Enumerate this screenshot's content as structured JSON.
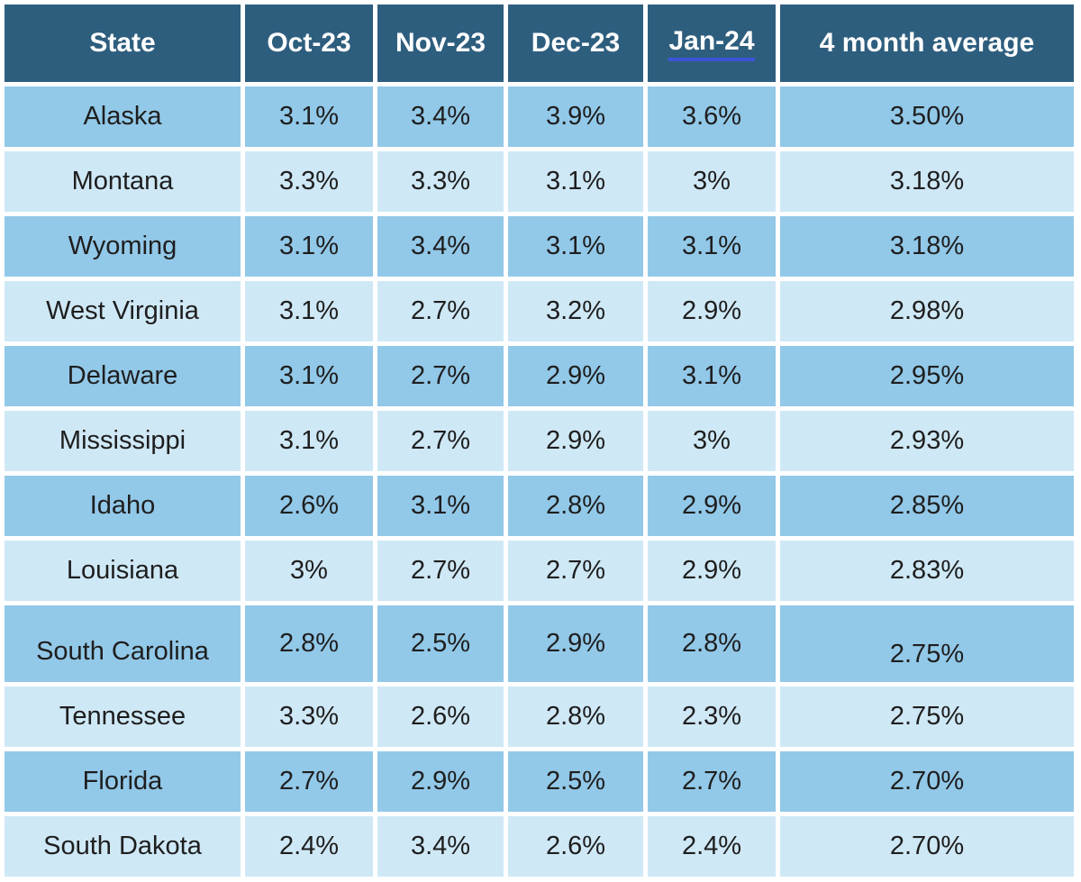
{
  "colors": {
    "header_bg": "#2e5e7e",
    "row_medium": "#92c8e8",
    "row_light": "#cfe8f6",
    "grid": "#ffffff",
    "header_text": "#ffffff",
    "cell_text": "#1e1e1e",
    "jan_underline": "#3c55d8"
  },
  "chart_data": {
    "type": "table",
    "columns": [
      "State",
      "Oct-23",
      "Nov-23",
      "Dec-23",
      "Jan-24",
      "4 month average"
    ],
    "rows": [
      {
        "state": "Alaska",
        "values": [
          "3.1%",
          "3.4%",
          "3.9%",
          "3.6%",
          "3.50%"
        ],
        "tall": false
      },
      {
        "state": "Montana",
        "values": [
          "3.3%",
          "3.3%",
          "3.1%",
          "3%",
          "3.18%"
        ],
        "tall": false
      },
      {
        "state": "Wyoming",
        "values": [
          "3.1%",
          "3.4%",
          "3.1%",
          "3.1%",
          "3.18%"
        ],
        "tall": false
      },
      {
        "state": "West Virginia",
        "values": [
          "3.1%",
          "2.7%",
          "3.2%",
          "2.9%",
          "2.98%"
        ],
        "tall": false
      },
      {
        "state": "Delaware",
        "values": [
          "3.1%",
          "2.7%",
          "2.9%",
          "3.1%",
          "2.95%"
        ],
        "tall": false
      },
      {
        "state": "Mississippi",
        "values": [
          "3.1%",
          "2.7%",
          "2.9%",
          "3%",
          "2.93%"
        ],
        "tall": false
      },
      {
        "state": "Idaho",
        "values": [
          "2.6%",
          "3.1%",
          "2.8%",
          "2.9%",
          "2.85%"
        ],
        "tall": false
      },
      {
        "state": "Louisiana",
        "values": [
          "3%",
          "2.7%",
          "2.7%",
          "2.9%",
          "2.83%"
        ],
        "tall": false
      },
      {
        "state": "South Carolina",
        "values": [
          "2.8%",
          "2.5%",
          "2.9%",
          "2.8%",
          "2.75%"
        ],
        "tall": true
      },
      {
        "state": "Tennessee",
        "values": [
          "3.3%",
          "2.6%",
          "2.8%",
          "2.3%",
          "2.75%"
        ],
        "tall": false
      },
      {
        "state": "Florida",
        "values": [
          "2.7%",
          "2.9%",
          "2.5%",
          "2.7%",
          "2.70%"
        ],
        "tall": false
      },
      {
        "state": "South Dakota",
        "values": [
          "2.4%",
          "3.4%",
          "2.6%",
          "2.4%",
          "2.70%"
        ],
        "tall": false
      }
    ]
  }
}
